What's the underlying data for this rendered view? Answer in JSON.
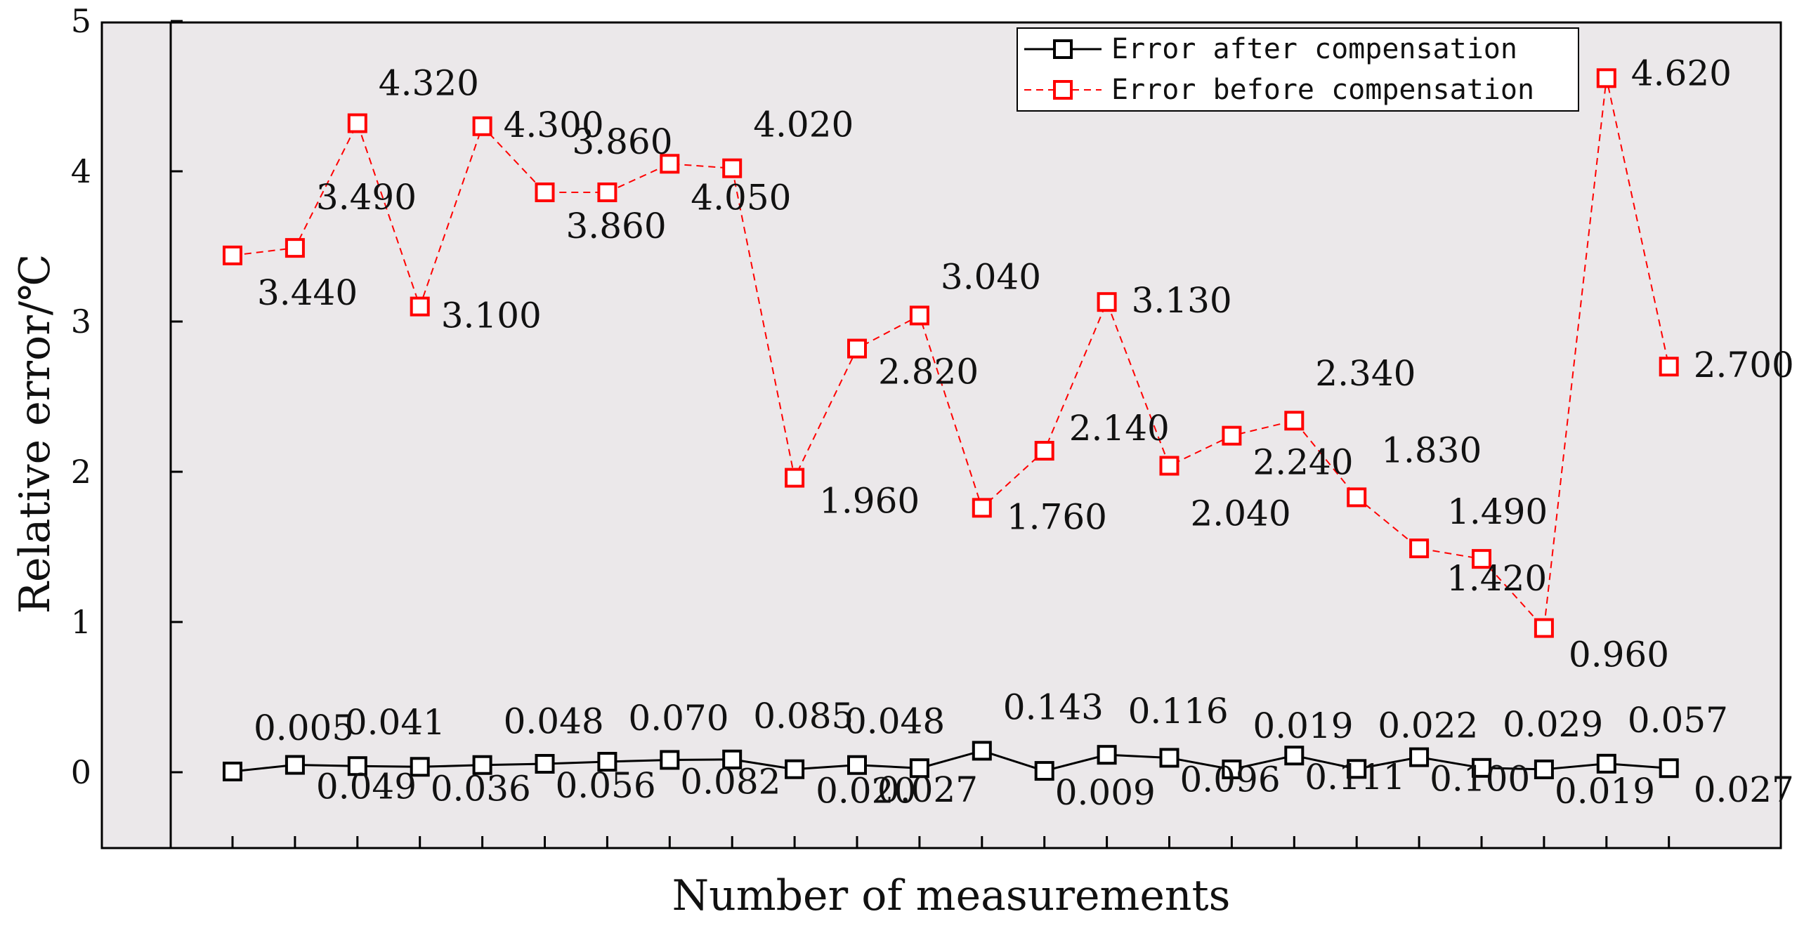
{
  "chart_data": {
    "type": "line",
    "xlabel": "Number of measurements",
    "ylabel": "Relative error/℃",
    "xlim": [
      0,
      24
    ],
    "ylim": [
      -0.5,
      5
    ],
    "yticks": [
      0,
      1,
      2,
      3,
      4,
      5
    ],
    "xticks": [
      1,
      2,
      3,
      4,
      5,
      6,
      7,
      8,
      9,
      10,
      11,
      12,
      13,
      14,
      15,
      16,
      17,
      18,
      19,
      20,
      21,
      22,
      23,
      24
    ],
    "x": [
      1,
      2,
      3,
      4,
      5,
      6,
      7,
      8,
      9,
      10,
      11,
      12,
      13,
      14,
      15,
      16,
      17,
      18,
      19,
      20,
      21,
      22,
      23,
      24
    ],
    "plot_background": "#ebe8ea",
    "legend_position": "top-right",
    "series": [
      {
        "name": "Error after compensation",
        "color": "#000000",
        "line_style": "solid",
        "marker": "square",
        "values": [
          0.005,
          0.049,
          0.041,
          0.036,
          0.048,
          0.056,
          0.07,
          0.082,
          0.085,
          0.02,
          0.048,
          0.027,
          0.143,
          0.009,
          0.116,
          0.096,
          0.019,
          0.111,
          0.022,
          0.1,
          0.029,
          0.019,
          0.057,
          0.027
        ],
        "labels": [
          "0.005",
          "0.049",
          "0.041",
          "0.036",
          "0.048",
          "0.056",
          "0.070",
          "0.082",
          "0.085",
          "0.020",
          "0.048",
          "0.027",
          "0.143",
          "0.009",
          "0.116",
          "0.096",
          "0.019",
          "0.111",
          "0.022",
          "0.100",
          "0.029",
          "0.019",
          "0.057",
          "0.027"
        ]
      },
      {
        "name": "Error before compensation",
        "color": "#ff0000",
        "line_style": "dashed",
        "marker": "square",
        "values": [
          3.44,
          3.49,
          4.32,
          3.1,
          4.3,
          3.86,
          3.86,
          4.05,
          4.02,
          1.96,
          2.82,
          3.04,
          1.76,
          2.14,
          3.13,
          2.04,
          2.24,
          2.34,
          1.83,
          1.49,
          1.42,
          0.96,
          4.62,
          2.7
        ],
        "labels": [
          "3.440",
          "3.490",
          "4.320",
          "3.100",
          "4.300",
          "3.860",
          "3.860",
          "4.050",
          "4.020",
          "1.960",
          "2.820",
          "3.040",
          "1.760",
          "2.140",
          "3.130",
          "2.040",
          "2.240",
          "2.340",
          "1.830",
          "1.490",
          "1.420",
          "0.960",
          "4.620",
          "2.700"
        ]
      }
    ]
  }
}
